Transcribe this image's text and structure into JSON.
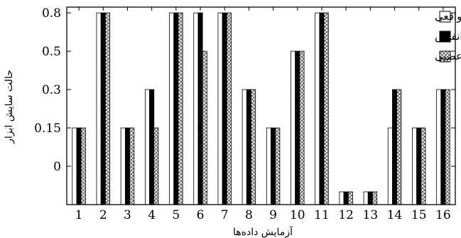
{
  "chart_data": {
    "type": "bar",
    "xlabel": "آزمایش داده‌ها",
    "ylabel": "حالت سایش ابزار",
    "categories": [
      "1",
      "2",
      "3",
      "4",
      "5",
      "6",
      "7",
      "8",
      "9",
      "10",
      "11",
      "12",
      "13",
      "14",
      "15",
      "16"
    ],
    "y_ticks": [
      "0",
      "0.15",
      "0.3",
      "0.5",
      "0.8"
    ],
    "y_tick_levels": [
      0,
      1,
      2,
      3,
      4
    ],
    "y_min_level": -1,
    "y_max_level": 4.15,
    "series": [
      {
        "name": "سایش واقعی",
        "fill": "#ffffff",
        "values": [
          0.15,
          0.8,
          0.15,
          0.3,
          0.8,
          0.8,
          0.8,
          0.3,
          0.15,
          0.5,
          0.8,
          -0.1,
          -0.1,
          0.15,
          0.15,
          0.3
        ]
      },
      {
        "name": "انفیس",
        "fill": "#000000",
        "values": [
          0.15,
          0.8,
          0.15,
          0.3,
          0.8,
          0.8,
          0.8,
          0.3,
          0.15,
          0.5,
          0.8,
          -0.1,
          -0.1,
          0.3,
          0.15,
          0.3
        ]
      },
      {
        "name": "شبکه عصبی",
        "fill": "hatch",
        "values": [
          0.15,
          0.8,
          0.15,
          0.15,
          0.8,
          0.5,
          0.8,
          0.3,
          0.15,
          0.5,
          0.8,
          -0.1,
          -0.1,
          0.3,
          0.15,
          0.3
        ]
      }
    ],
    "legend_position": "top-right",
    "grid": false
  }
}
